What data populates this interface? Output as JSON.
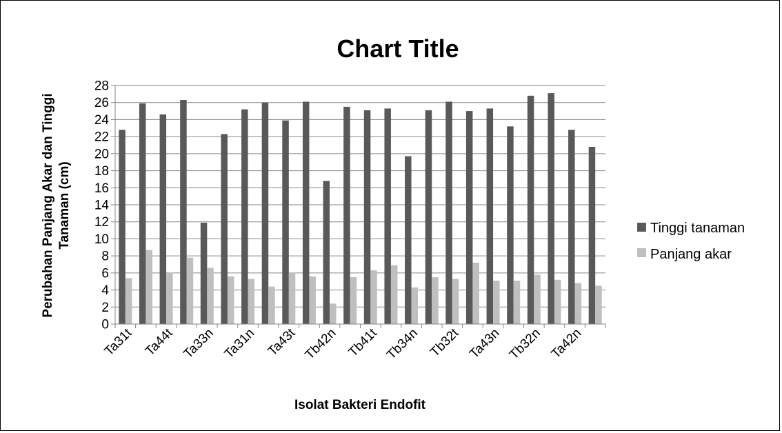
{
  "chart_data": {
    "type": "bar",
    "title": "Chart Title",
    "xlabel": "Isolat Bakteri Endofit",
    "ylabel_lines": [
      "Perubahan Panjang Akar dan Tinggi",
      "Tanaman (cm)"
    ],
    "ylim": [
      0,
      28
    ],
    "yticks": [
      0,
      2,
      4,
      6,
      8,
      10,
      12,
      14,
      16,
      18,
      20,
      22,
      24,
      26,
      28
    ],
    "grid": true,
    "legend_position": "right",
    "x_tick_labels": [
      "Ta31t",
      "Ta44t",
      "Ta33n",
      "Ta31n",
      "Ta43t",
      "Tb42n",
      "Tb41t",
      "Tb34n",
      "Tb32t",
      "Ta43n",
      "Tb32n",
      "Ta42n"
    ],
    "category_count": 24,
    "series": [
      {
        "name": "Tinggi tanaman",
        "color": "#595959",
        "values": [
          22.8,
          25.9,
          24.6,
          26.3,
          11.9,
          22.3,
          25.2,
          26.0,
          23.9,
          26.1,
          16.8,
          25.5,
          25.1,
          25.3,
          19.7,
          25.1,
          26.1,
          25.0,
          25.3,
          23.2,
          26.8,
          27.1,
          22.8,
          20.8
        ]
      },
      {
        "name": "Panjang akar",
        "color": "#bfbfbf",
        "values": [
          5.4,
          8.7,
          6.0,
          7.8,
          6.6,
          5.6,
          5.3,
          4.4,
          6.0,
          5.6,
          2.4,
          5.5,
          6.3,
          6.9,
          4.3,
          5.5,
          5.3,
          7.2,
          5.1,
          5.1,
          5.8,
          5.2,
          4.8,
          4.5
        ]
      }
    ]
  }
}
